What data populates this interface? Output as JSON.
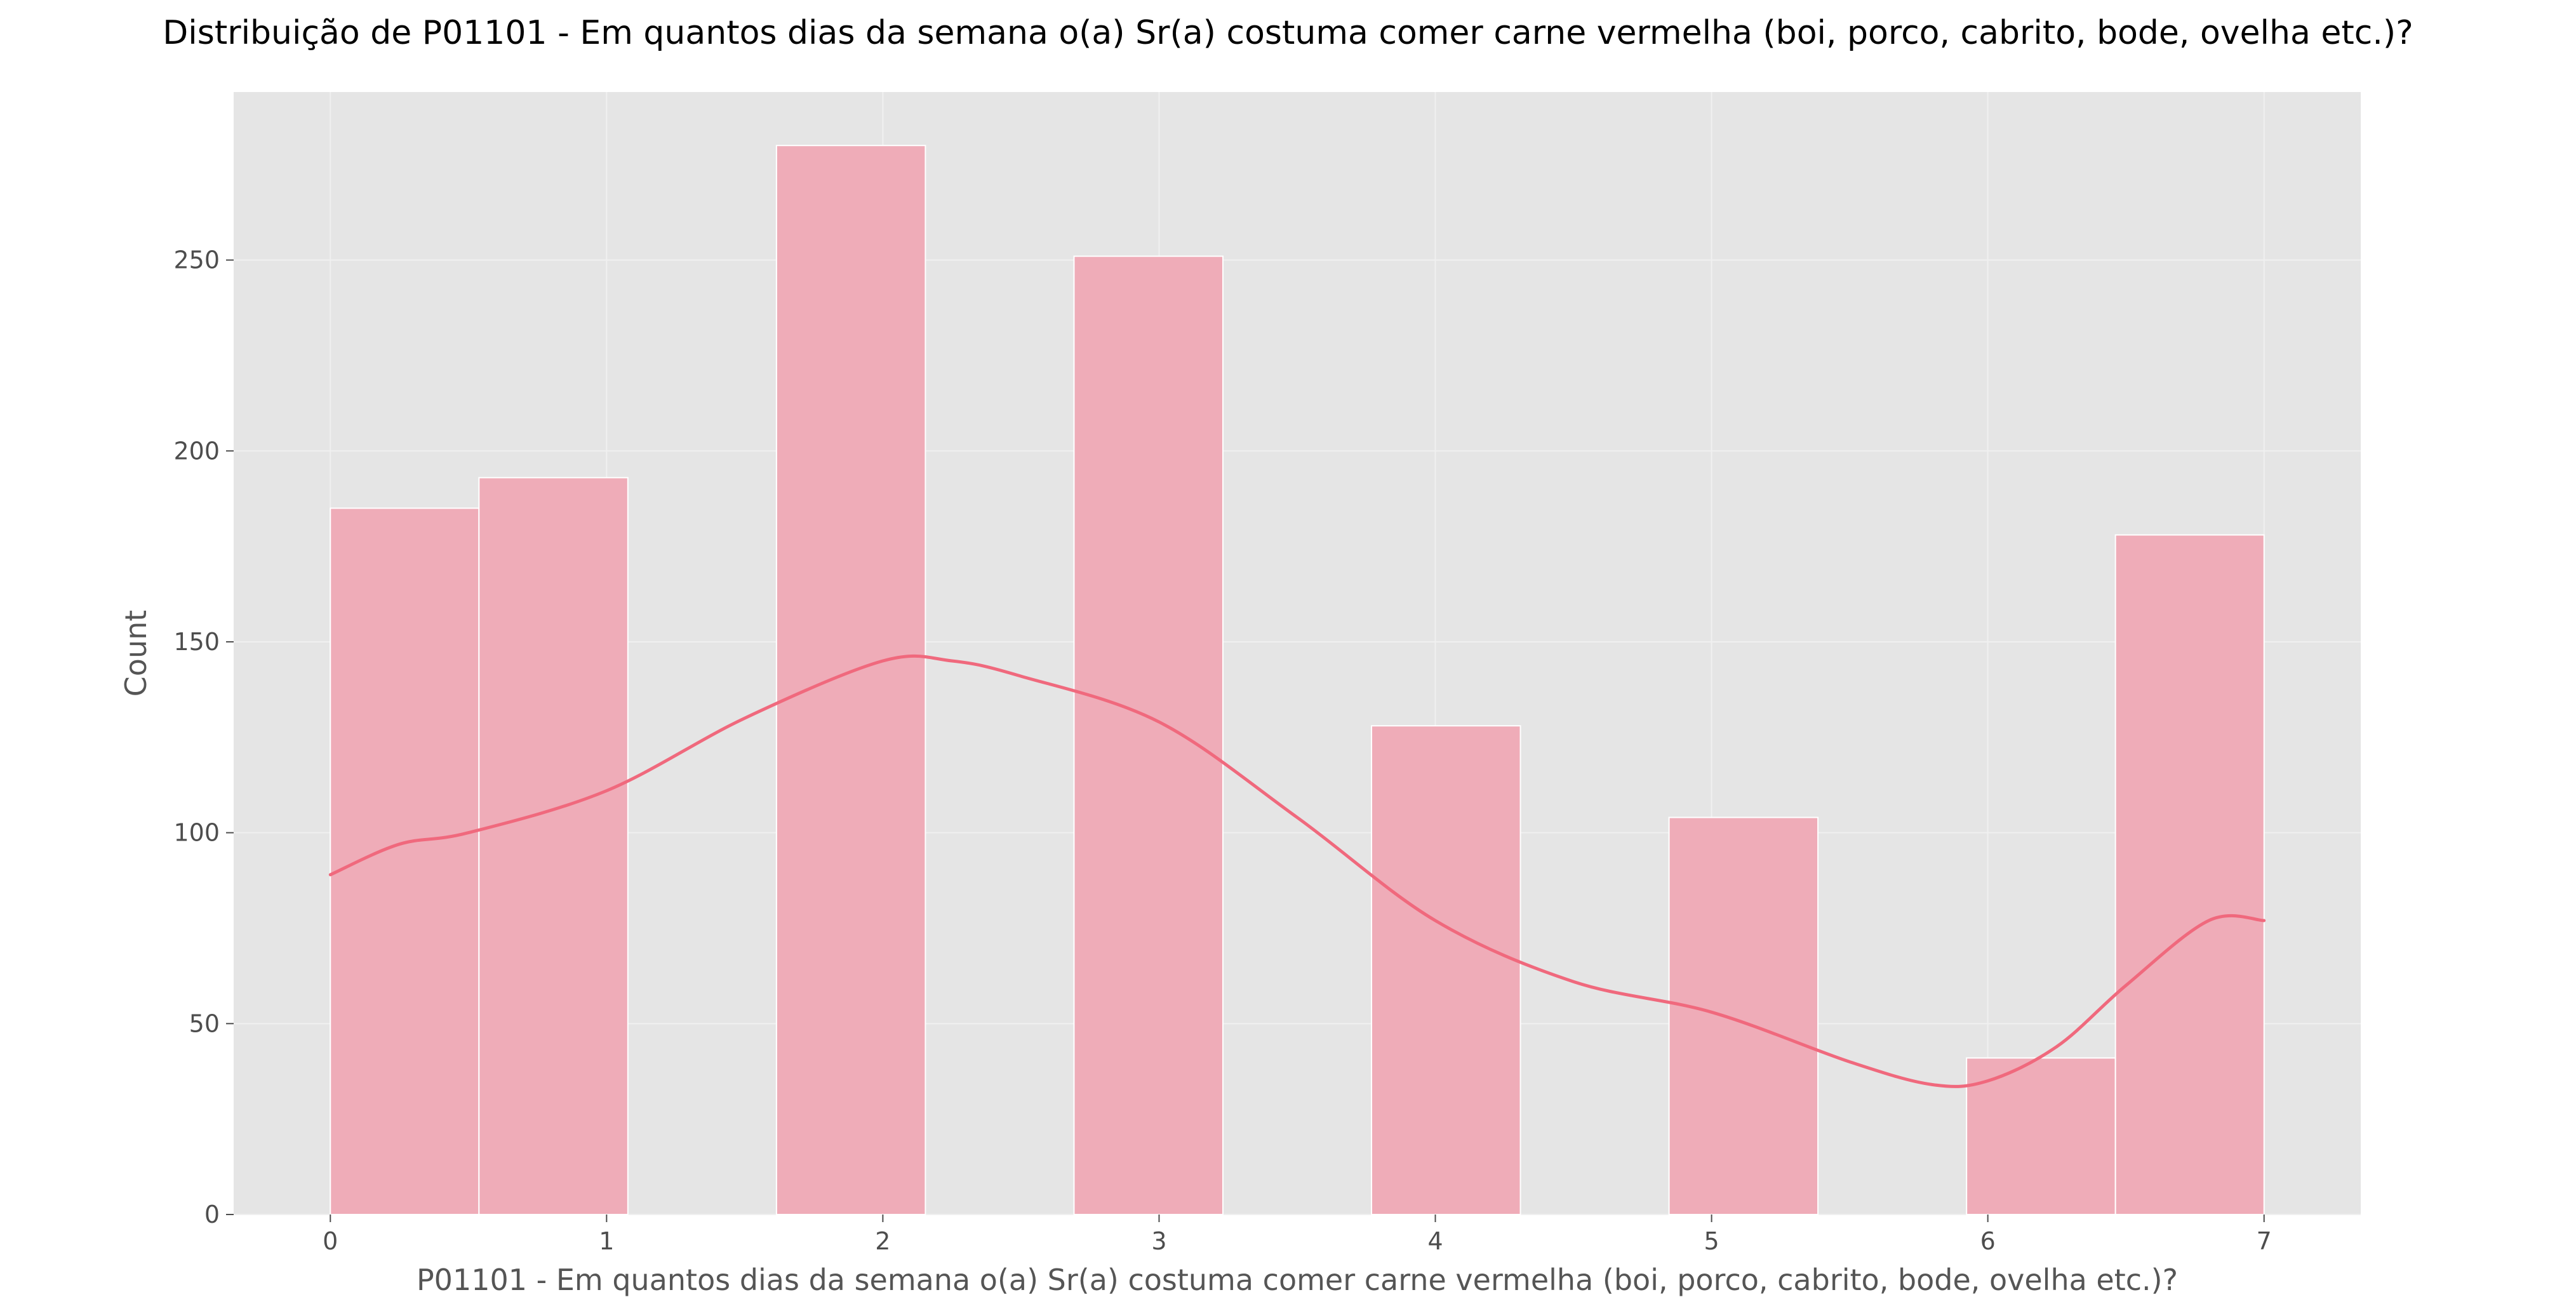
{
  "chart_data": {
    "type": "bar",
    "title": "Distribuição de P01101 - Em quantos dias da semana o(a) Sr(a) costuma comer carne vermelha (boi, porco, cabrito, bode, ovelha etc.)?",
    "xlabel": "P01101 - Em quantos dias da semana o(a) Sr(a) costuma comer carne vermelha (boi, porco, cabrito, bode, ovelha etc.)?",
    "ylabel": "Count",
    "xlim": [
      -0.35,
      7.35
    ],
    "ylim": [
      0,
      294
    ],
    "x_ticks": [
      "0",
      "1",
      "2",
      "3",
      "4",
      "5",
      "6",
      "7"
    ],
    "y_ticks": [
      "0",
      "50",
      "100",
      "150",
      "200",
      "250"
    ],
    "bins": [
      {
        "x0": 0.0,
        "x1": 0.538,
        "value": 185
      },
      {
        "x0": 0.538,
        "x1": 1.077,
        "value": 193
      },
      {
        "x0": 1.615,
        "x1": 2.154,
        "value": 280
      },
      {
        "x0": 2.692,
        "x1": 3.231,
        "value": 251
      },
      {
        "x0": 3.769,
        "x1": 4.308,
        "value": 128
      },
      {
        "x0": 4.846,
        "x1": 5.385,
        "value": 104
      },
      {
        "x0": 5.923,
        "x1": 6.462,
        "value": 41
      },
      {
        "x0": 6.462,
        "x1": 7.0,
        "value": 178
      }
    ],
    "kde": {
      "x": [
        0,
        0.25,
        0.5,
        1.0,
        1.5,
        2.0,
        2.25,
        2.5,
        3.0,
        3.5,
        4.0,
        4.5,
        5.0,
        5.5,
        5.8,
        6.0,
        6.25,
        6.5,
        6.8,
        7.0
      ],
      "y": [
        89,
        97,
        100,
        111,
        130,
        145,
        145,
        141,
        129,
        104,
        77,
        61,
        53,
        40,
        34,
        35,
        44,
        60,
        77,
        77
      ]
    },
    "colors": {
      "bar": "#efacb8",
      "bar_edge": "#ffffff",
      "kde": "#f0697d",
      "panel": "#e5e5e5",
      "grid": "#f0f0f0"
    },
    "grid": true,
    "legend": "none"
  }
}
